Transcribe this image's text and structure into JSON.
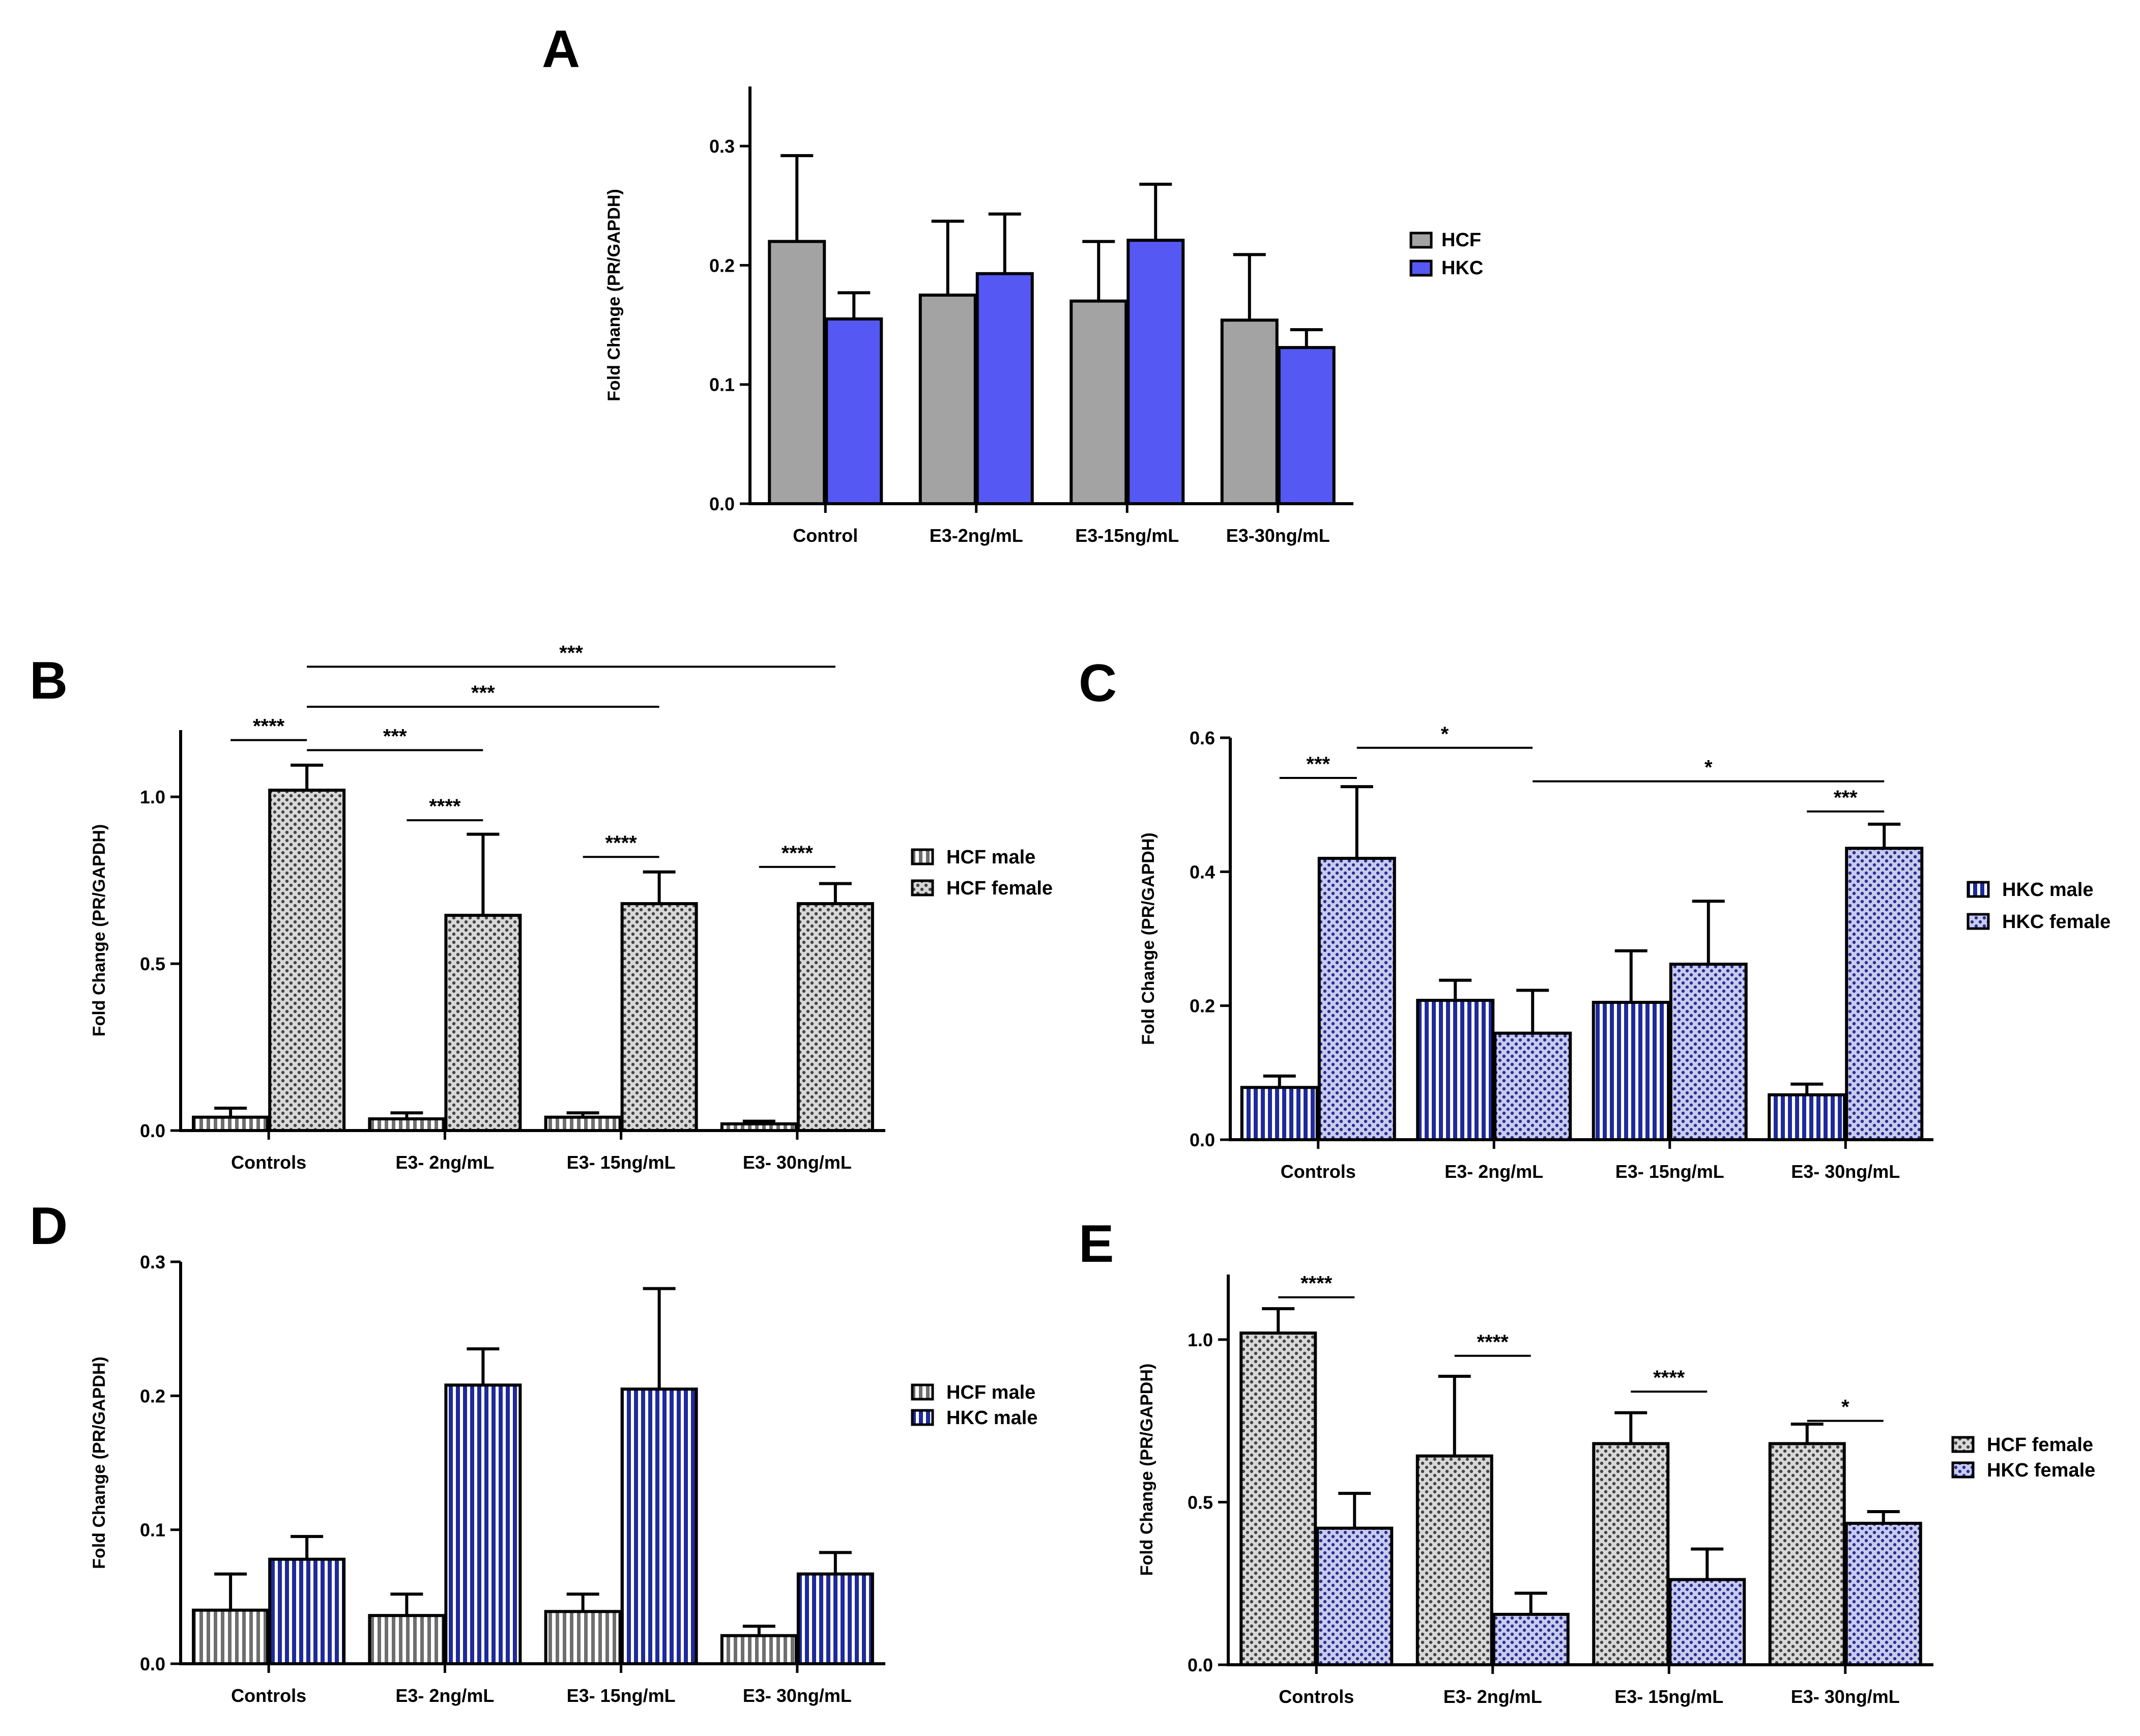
{
  "colors": {
    "hcf": "#a3a3a3",
    "hkc": "#5558f2",
    "hkc_male": "#1e2a9c",
    "hkc_female_dot": "#28308f",
    "hkc_female_bg": "#c9cbee",
    "hcf_pattern_dot": "#444444",
    "hcf_pattern_bg": "#d8d8d8"
  },
  "chart_data": [
    {
      "panel": "A",
      "type": "bar",
      "categories": [
        "Control",
        "E3-2ng/mL",
        "E3-15ng/mL",
        "E3-30ng/mL"
      ],
      "ylabel": "Fold Change (PR/GAPDH)",
      "ylim": [
        0,
        0.35
      ],
      "yticks": [
        0.0,
        0.1,
        0.2,
        0.3
      ],
      "ytick_labels": [
        "0.0",
        "0.1",
        "0.2",
        "0.3"
      ],
      "series": [
        {
          "name": "HCF",
          "style": "hcf_solid",
          "values": [
            0.22,
            0.175,
            0.17,
            0.154
          ],
          "errors": [
            0.072,
            0.062,
            0.05,
            0.055
          ]
        },
        {
          "name": "HKC",
          "style": "hkc_solid",
          "values": [
            0.155,
            0.193,
            0.221,
            0.131
          ],
          "errors": [
            0.022,
            0.05,
            0.047,
            0.015
          ]
        }
      ],
      "significance": []
    },
    {
      "panel": "B",
      "type": "bar",
      "categories": [
        "Controls",
        "E3- 2ng/mL",
        "E3- 15ng/mL",
        "E3- 30ng/mL"
      ],
      "ylabel": "Fold Change (PR/GAPDH)",
      "ylim": [
        0,
        1.2
      ],
      "yticks": [
        0.0,
        0.5,
        1.0
      ],
      "ytick_labels": [
        "0.0",
        "0.5",
        "1.0"
      ],
      "series": [
        {
          "name": "HCF male",
          "style": "hcf_stripe",
          "values": [
            0.04,
            0.035,
            0.04,
            0.02
          ],
          "errors": [
            0.027,
            0.018,
            0.013,
            0.008
          ]
        },
        {
          "name": "HCF female",
          "style": "hcf_dots",
          "values": [
            1.02,
            0.645,
            0.68,
            0.68
          ],
          "errors": [
            0.075,
            0.243,
            0.095,
            0.06
          ]
        }
      ],
      "significance": [
        {
          "label": "****",
          "from": [
            0,
            0
          ],
          "to": [
            0,
            1
          ],
          "y": 1.17
        },
        {
          "label": "***",
          "from": [
            0,
            1
          ],
          "to": [
            1,
            1
          ],
          "y": 1.14
        },
        {
          "label": "****",
          "from": [
            1,
            0
          ],
          "to": [
            1,
            1
          ],
          "y": 0.93
        },
        {
          "label": "***",
          "from": [
            0,
            1
          ],
          "to": [
            2,
            1
          ],
          "y": 1.27
        },
        {
          "label": "****",
          "from": [
            2,
            0
          ],
          "to": [
            2,
            1
          ],
          "y": 0.82
        },
        {
          "label": "***",
          "from": [
            0,
            1
          ],
          "to": [
            3,
            1
          ],
          "y": 1.39
        },
        {
          "label": "****",
          "from": [
            3,
            0
          ],
          "to": [
            3,
            1
          ],
          "y": 0.79
        }
      ]
    },
    {
      "panel": "C",
      "type": "bar",
      "categories": [
        "Controls",
        "E3- 2ng/mL",
        "E3- 15ng/mL",
        "E3- 30ng/mL"
      ],
      "ylabel": "Fold Change (PR/GAPDH)",
      "ylim": [
        0,
        0.6
      ],
      "yticks": [
        0.0,
        0.2,
        0.4,
        0.6
      ],
      "ytick_labels": [
        "0.0",
        "0.2",
        "0.4",
        "0.6"
      ],
      "series": [
        {
          "name": "HKC male",
          "style": "hkc_stripe",
          "values": [
            0.078,
            0.208,
            0.205,
            0.067
          ],
          "errors": [
            0.017,
            0.03,
            0.077,
            0.016
          ]
        },
        {
          "name": "HKC female",
          "style": "hkc_dots",
          "values": [
            0.42,
            0.159,
            0.262,
            0.435
          ],
          "errors": [
            0.107,
            0.064,
            0.094,
            0.036
          ]
        }
      ],
      "significance": [
        {
          "label": "***",
          "from": [
            0,
            0
          ],
          "to": [
            0,
            1
          ],
          "y": 0.54
        },
        {
          "label": "*",
          "from": [
            0,
            1
          ],
          "to": [
            1,
            1
          ],
          "y": 0.585
        },
        {
          "label": "*",
          "from": [
            1,
            1
          ],
          "to": [
            3,
            1
          ],
          "y": 0.535
        },
        {
          "label": "***",
          "from": [
            3,
            0
          ],
          "to": [
            3,
            1
          ],
          "y": 0.49
        }
      ]
    },
    {
      "panel": "D",
      "type": "bar",
      "categories": [
        "Controls",
        "E3- 2ng/mL",
        "E3- 15ng/mL",
        "E3- 30ng/mL"
      ],
      "ylabel": "Fold Change (PR/GAPDH)",
      "ylim": [
        0,
        0.3
      ],
      "yticks": [
        0.0,
        0.1,
        0.2,
        0.3
      ],
      "ytick_labels": [
        "0.0",
        "0.1",
        "0.2",
        "0.3"
      ],
      "series": [
        {
          "name": "HCF male",
          "style": "hcf_stripe",
          "values": [
            0.04,
            0.036,
            0.039,
            0.021
          ],
          "errors": [
            0.027,
            0.016,
            0.013,
            0.007
          ]
        },
        {
          "name": "HKC male",
          "style": "hkc_stripe",
          "values": [
            0.078,
            0.208,
            0.205,
            0.067
          ],
          "errors": [
            0.017,
            0.027,
            0.075,
            0.016
          ]
        }
      ],
      "significance": []
    },
    {
      "panel": "E",
      "type": "bar",
      "categories": [
        "Controls",
        "E3- 2ng/mL",
        "E3- 15ng/mL",
        "E3- 30ng/mL"
      ],
      "ylabel": "Fold Change (PR/GAPDH)",
      "ylim": [
        0,
        1.2
      ],
      "yticks": [
        0.0,
        0.5,
        1.0
      ],
      "ytick_labels": [
        "0.0",
        "0.5",
        "1.0"
      ],
      "series": [
        {
          "name": "HCF female",
          "style": "hcf_dots",
          "values": [
            1.02,
            0.642,
            0.68,
            0.68
          ],
          "errors": [
            0.075,
            0.245,
            0.095,
            0.06
          ]
        },
        {
          "name": "HKC female",
          "style": "hkc_dots",
          "values": [
            0.42,
            0.155,
            0.262,
            0.435
          ],
          "errors": [
            0.107,
            0.065,
            0.094,
            0.036
          ]
        }
      ],
      "significance": [
        {
          "label": "****",
          "from": [
            0,
            0
          ],
          "to": [
            0,
            1
          ],
          "y": 1.13
        },
        {
          "label": "****",
          "from": [
            1,
            0
          ],
          "to": [
            1,
            1
          ],
          "y": 0.95
        },
        {
          "label": "****",
          "from": [
            2,
            0
          ],
          "to": [
            2,
            1
          ],
          "y": 0.84
        },
        {
          "label": "*",
          "from": [
            3,
            0
          ],
          "to": [
            3,
            1
          ],
          "y": 0.75
        }
      ]
    }
  ]
}
